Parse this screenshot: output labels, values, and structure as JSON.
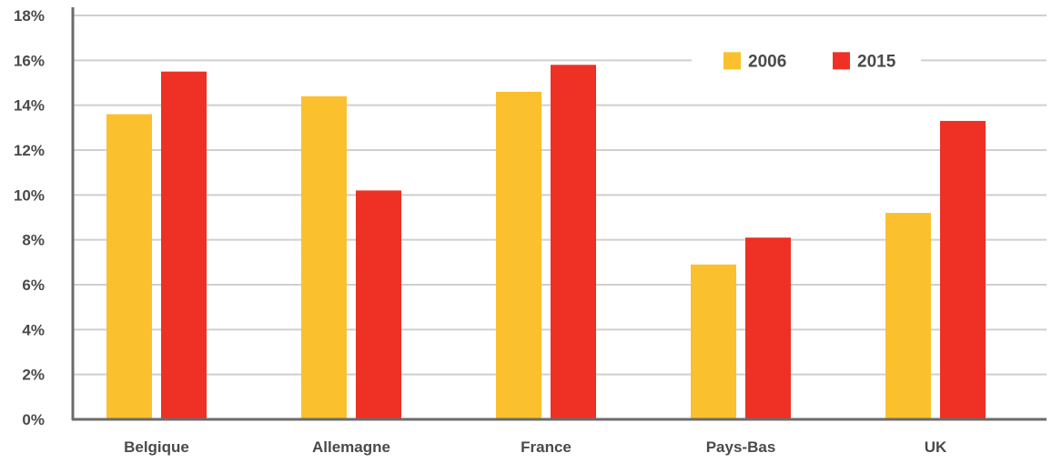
{
  "chart_data": {
    "type": "bar",
    "title": "",
    "xlabel": "",
    "ylabel": "",
    "categories": [
      "Belgique",
      "Allemagne",
      "France",
      "Pays-Bas",
      "UK"
    ],
    "series": [
      {
        "name": "2006",
        "color": "#fbc02d",
        "values": [
          13.6,
          14.4,
          14.6,
          6.9,
          9.2
        ]
      },
      {
        "name": "2015",
        "color": "#ee3124",
        "values": [
          15.5,
          10.2,
          15.8,
          8.1,
          13.3
        ]
      }
    ],
    "ylim": [
      0,
      18
    ],
    "yticks": [
      0,
      2,
      4,
      6,
      8,
      10,
      12,
      14,
      16,
      18
    ],
    "ytick_labels": [
      "0%",
      "2%",
      "4%",
      "6%",
      "8%",
      "10%",
      "12%",
      "14%",
      "16%",
      "18%"
    ],
    "grid": true,
    "legend_position": "top-right",
    "colors": {
      "gridline": "#cfcfcf",
      "axis": "#6b6b6b",
      "text": "#4a4a4a"
    }
  }
}
